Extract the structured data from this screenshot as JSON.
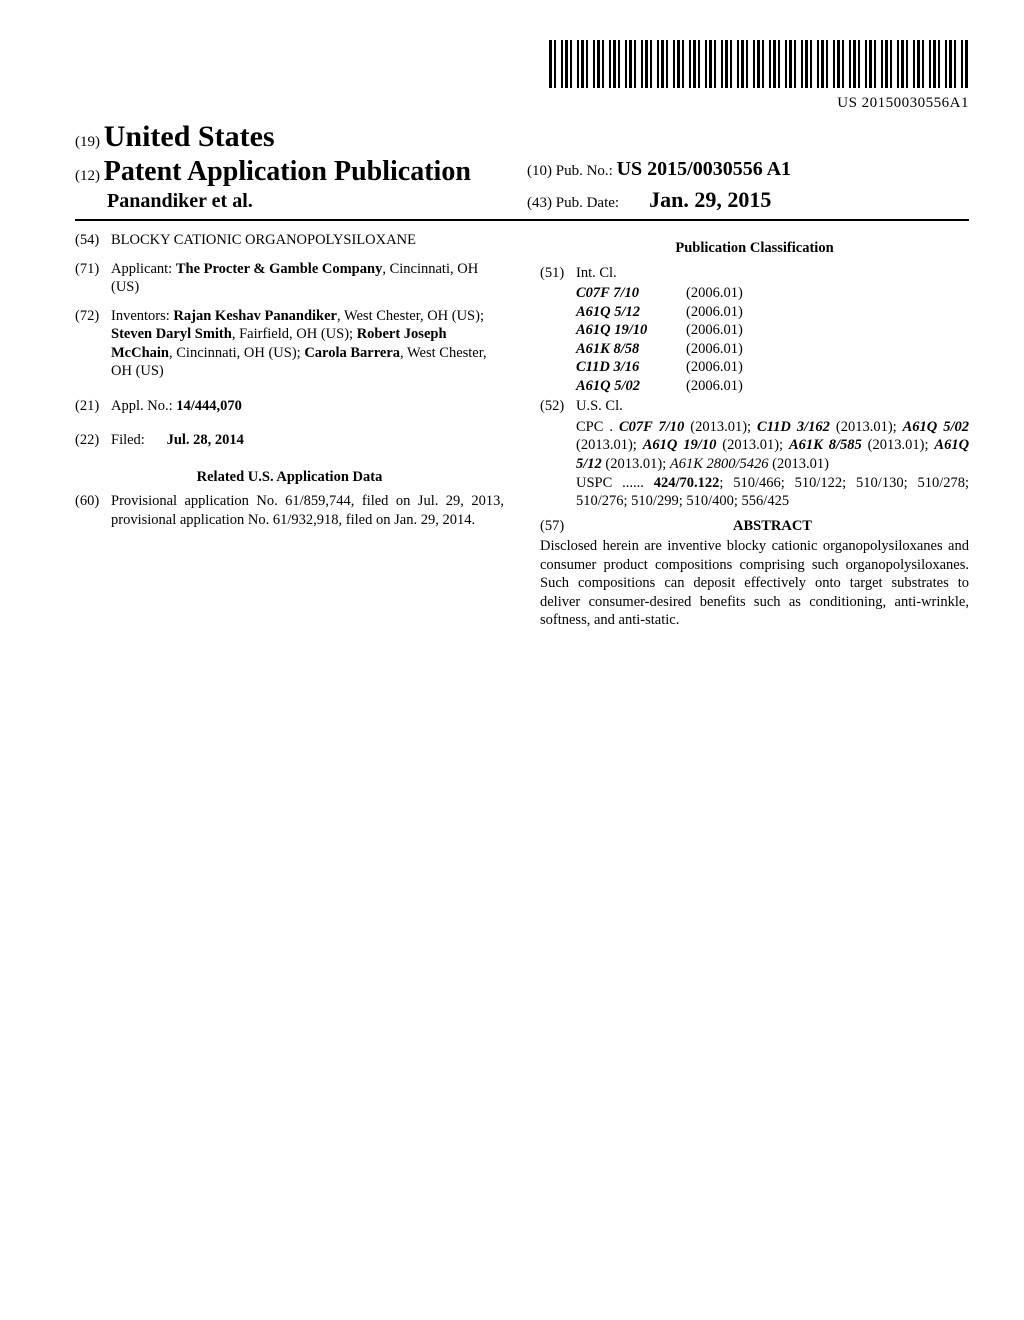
{
  "barcode_number": "US 20150030556A1",
  "header": {
    "l19_prefix": "(19)",
    "l19_text": "United States",
    "l12_prefix": "(12)",
    "l12_text": "Patent Application Publication",
    "authors": "Panandiker et al.",
    "l10_prefix": "(10)",
    "l10_label": "Pub. No.:",
    "l10_value": "US 2015/0030556 A1",
    "l43_prefix": "(43)",
    "l43_label": "Pub. Date:",
    "l43_value": "Jan. 29, 2015"
  },
  "left": {
    "s54_num": "(54)",
    "s54_title": "BLOCKY CATIONIC ORGANOPOLYSILOXANE",
    "s71_num": "(71)",
    "s71_label": "Applicant:",
    "s71_value_bold": "The Procter & Gamble Company",
    "s71_value_rest": ", Cincinnati, OH (US)",
    "s72_num": "(72)",
    "s72_label": "Inventors:",
    "s72_body": [
      {
        "b": "Rajan Keshav Panandiker",
        "r": ", West Chester, OH (US); "
      },
      {
        "b": "Steven Daryl Smith",
        "r": ", Fairfield, OH (US); "
      },
      {
        "b": "Robert Joseph McChain",
        "r": ", Cincinnati, OH (US); "
      },
      {
        "b": "Carola Barrera",
        "r": ", West Chester, OH (US)"
      }
    ],
    "s21_num": "(21)",
    "s21_label": "Appl. No.:",
    "s21_value": "14/444,070",
    "s22_num": "(22)",
    "s22_label": "Filed:",
    "s22_value": "Jul. 28, 2014",
    "related_h": "Related U.S. Application Data",
    "s60_num": "(60)",
    "s60_text": "Provisional application No. 61/859,744, filed on Jul. 29, 2013, provisional application No. 61/932,918, filed on Jan. 29, 2014."
  },
  "right": {
    "pubclass_h": "Publication Classification",
    "s51_num": "(51)",
    "s51_label": "Int. Cl.",
    "intcl": [
      {
        "code": "C07F 7/10",
        "ver": "(2006.01)"
      },
      {
        "code": "A61Q 5/12",
        "ver": "(2006.01)"
      },
      {
        "code": "A61Q 19/10",
        "ver": "(2006.01)"
      },
      {
        "code": "A61K 8/58",
        "ver": "(2006.01)"
      },
      {
        "code": "C11D 3/16",
        "ver": "(2006.01)"
      },
      {
        "code": "A61Q 5/02",
        "ver": "(2006.01)"
      }
    ],
    "s52_num": "(52)",
    "s52_label": "U.S. Cl.",
    "cpc_label": "CPC .",
    "cpc": [
      {
        "c": "C07F 7/10",
        "d": "(2013.01); "
      },
      {
        "c": "C11D 3/162",
        "d": "(2013.01); "
      },
      {
        "c": "A61Q 5/02",
        "d": "(2013.01); "
      },
      {
        "c": "A61Q 19/10",
        "d": "(2013.01); "
      },
      {
        "c": "A61K 8/585",
        "d": "(2013.01); "
      },
      {
        "c": "A61Q 5/12",
        "d": "(2013.01); "
      },
      {
        "c": "A61K 2800/5426",
        "d": "(2013.01)",
        "plain": true
      }
    ],
    "uspc_label": "USPC ......",
    "uspc_lead": "424/70.122",
    "uspc_rest": "; 510/466; 510/122; 510/130; 510/278; 510/276; 510/299; 510/400; 556/425",
    "s57_num": "(57)",
    "s57_label": "ABSTRACT",
    "abstract": "Disclosed herein are inventive blocky cationic organopolysiloxanes and consumer product compositions comprising such organopolysiloxanes. Such compositions can deposit effectively onto target substrates to deliver consumer-desired benefits such as conditioning, anti-wrinkle, softness, and anti-static."
  }
}
